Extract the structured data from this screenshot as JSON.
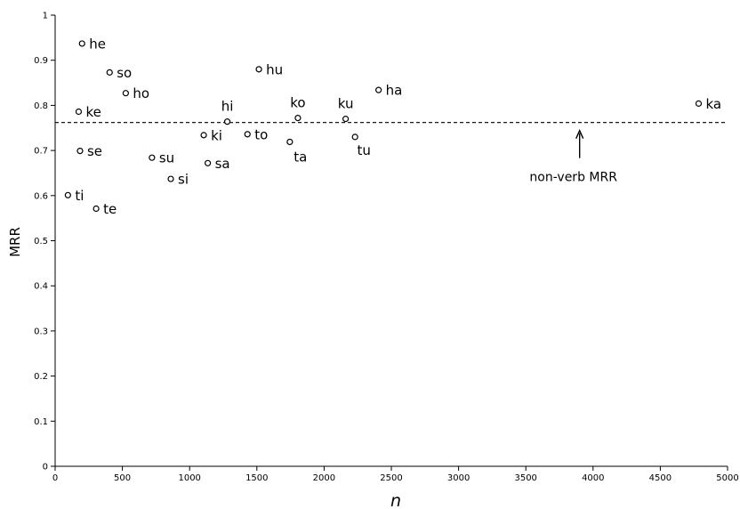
{
  "chart_data": {
    "type": "scatter",
    "xlabel": "n",
    "ylabel": "MRR",
    "xlim": [
      0,
      5000
    ],
    "ylim": [
      0,
      1
    ],
    "grid": false,
    "x_ticks": [
      "0",
      "500",
      "1000",
      "1500",
      "2000",
      "2500",
      "3000",
      "3500",
      "4000",
      "4500",
      "5000"
    ],
    "y_ticks": [
      "0",
      "0.1",
      "0.2",
      "0.3",
      "0.4",
      "0.5",
      "0.6",
      "0.7",
      "0.8",
      "0.9",
      "1"
    ],
    "reference_line": {
      "y": 0.762,
      "style": "dashed",
      "label": "non-verb MRR",
      "arrow_x": 3900
    },
    "points": [
      {
        "label": "he",
        "x": 200,
        "y": 0.937
      },
      {
        "label": "so",
        "x": 405,
        "y": 0.873
      },
      {
        "label": "ho",
        "x": 525,
        "y": 0.827
      },
      {
        "label": "ke",
        "x": 175,
        "y": 0.786
      },
      {
        "label": "se",
        "x": 185,
        "y": 0.699
      },
      {
        "label": "ti",
        "x": 95,
        "y": 0.601
      },
      {
        "label": "te",
        "x": 305,
        "y": 0.571
      },
      {
        "label": "su",
        "x": 720,
        "y": 0.684
      },
      {
        "label": "si",
        "x": 860,
        "y": 0.637
      },
      {
        "label": "ki",
        "x": 1105,
        "y": 0.734
      },
      {
        "label": "sa",
        "x": 1135,
        "y": 0.672
      },
      {
        "label": "hi",
        "x": 1280,
        "y": 0.764
      },
      {
        "label": "hu",
        "x": 1515,
        "y": 0.88
      },
      {
        "label": "to",
        "x": 1430,
        "y": 0.736
      },
      {
        "label": "ko",
        "x": 1805,
        "y": 0.772
      },
      {
        "label": "ta",
        "x": 1745,
        "y": 0.719
      },
      {
        "label": "ku",
        "x": 2160,
        "y": 0.77
      },
      {
        "label": "tu",
        "x": 2230,
        "y": 0.73
      },
      {
        "label": "ha",
        "x": 2405,
        "y": 0.834
      },
      {
        "label": "ka",
        "x": 4785,
        "y": 0.804
      }
    ]
  }
}
